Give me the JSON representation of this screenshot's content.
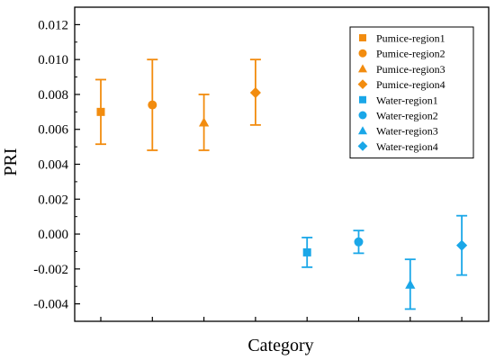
{
  "chart_data": {
    "type": "scatter",
    "title": "",
    "xlabel": "Category",
    "ylabel": "PRI",
    "ylim": [
      -0.005,
      0.013
    ],
    "yticks": [
      "-0.004",
      "-0.002",
      "0.000",
      "0.002",
      "0.004",
      "0.006",
      "0.008",
      "0.010",
      "0.012"
    ],
    "grid": false,
    "legend_position": "top-right",
    "series": [
      {
        "name": "Pumice-region1",
        "x": 1,
        "y": 0.007,
        "err_low": 0.00515,
        "err_high": 0.00885,
        "marker": "square",
        "color": "#F28C0F"
      },
      {
        "name": "Pumice-region2",
        "x": 2,
        "y": 0.0074,
        "err_low": 0.0048,
        "err_high": 0.01,
        "marker": "circle",
        "color": "#F28C0F"
      },
      {
        "name": "Pumice-region3",
        "x": 3,
        "y": 0.0064,
        "err_low": 0.0048,
        "err_high": 0.008,
        "marker": "triangle",
        "color": "#F28C0F"
      },
      {
        "name": "Pumice-region4",
        "x": 4,
        "y": 0.0081,
        "err_low": 0.00625,
        "err_high": 0.01,
        "marker": "diamond",
        "color": "#F28C0F"
      },
      {
        "name": "Water-region1",
        "x": 5,
        "y": -0.00105,
        "err_low": -0.0019,
        "err_high": -0.0002,
        "marker": "square",
        "color": "#1AA7E8"
      },
      {
        "name": "Water-region2",
        "x": 6,
        "y": -0.00045,
        "err_low": -0.0011,
        "err_high": 0.0002,
        "marker": "circle",
        "color": "#1AA7E8"
      },
      {
        "name": "Water-region3",
        "x": 7,
        "y": -0.0029,
        "err_low": -0.0043,
        "err_high": -0.00145,
        "marker": "triangle",
        "color": "#1AA7E8"
      },
      {
        "name": "Water-region4",
        "x": 8,
        "y": -0.00065,
        "err_low": -0.00235,
        "err_high": 0.00105,
        "marker": "diamond",
        "color": "#1AA7E8"
      }
    ]
  }
}
